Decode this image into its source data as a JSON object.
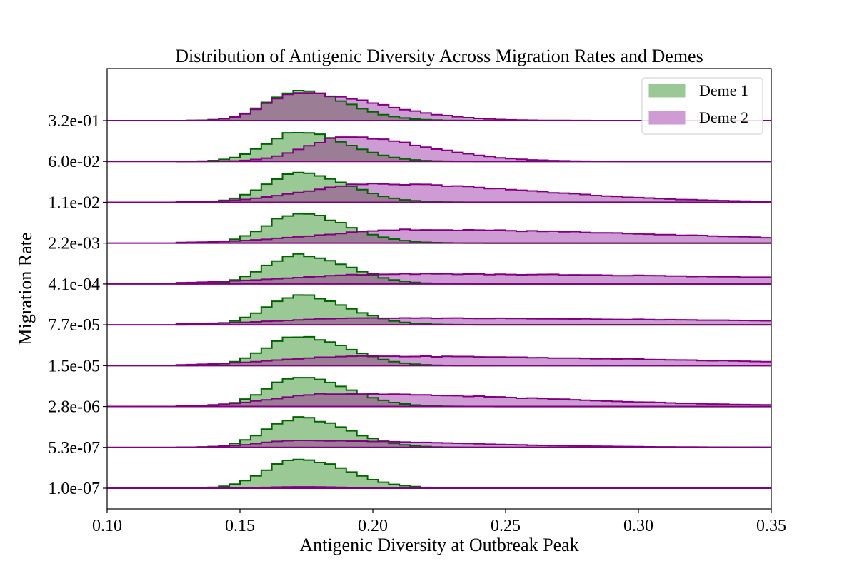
{
  "chart_data": {
    "type": "histogram-ridgeline",
    "title": "Distribution of Antigenic Diversity Across Migration Rates and Demes",
    "xlabel": "Antigenic Diversity at Outbreak Peak",
    "ylabel": "Migration Rate",
    "xlim": [
      0.1,
      0.35
    ],
    "xticks": [
      "0.10",
      "0.15",
      "0.20",
      "0.25",
      "0.30",
      "0.35"
    ],
    "ylevels": [
      "1.0e-07",
      "5.3e-07",
      "2.8e-06",
      "1.5e-05",
      "7.7e-05",
      "4.1e-04",
      "2.2e-03",
      "1.1e-02",
      "6.0e-02",
      "3.2e-01"
    ],
    "legend": {
      "position": "top-right",
      "entries": [
        "Deme 1",
        "Deme 2"
      ]
    },
    "grid": false,
    "colors": {
      "deme1_fill": "#9bc995",
      "deme1_edge": "#006400",
      "deme2_fill": "#cf9bd4",
      "deme2_edge": "#800080",
      "overlap": "#9b7e95"
    },
    "bin_width": 0.004,
    "series": [
      {
        "name": "Deme 1",
        "shape": "peaked",
        "peak": 0.172,
        "left_sigma": 0.012,
        "right_sigma": 0.018,
        "heights": [
          0.88,
          0.88,
          0.88,
          0.88,
          0.88,
          0.88,
          0.88,
          0.88,
          0.88,
          0.88
        ]
      },
      {
        "name": "Deme 2",
        "peaks": [
          0.172,
          0.172,
          0.185,
          0.195,
          0.2,
          0.21,
          0.215,
          0.2,
          0.19,
          0.172
        ],
        "left_sigmas": [
          0.012,
          0.015,
          0.022,
          0.03,
          0.035,
          0.04,
          0.035,
          0.025,
          0.015,
          0.012
        ],
        "right_sigmas": [
          0.018,
          0.06,
          0.08,
          0.12,
          0.15,
          0.15,
          0.1,
          0.06,
          0.03,
          0.03
        ],
        "heights": [
          0.04,
          0.2,
          0.38,
          0.28,
          0.2,
          0.3,
          0.4,
          0.55,
          0.72,
          0.82
        ]
      }
    ]
  }
}
